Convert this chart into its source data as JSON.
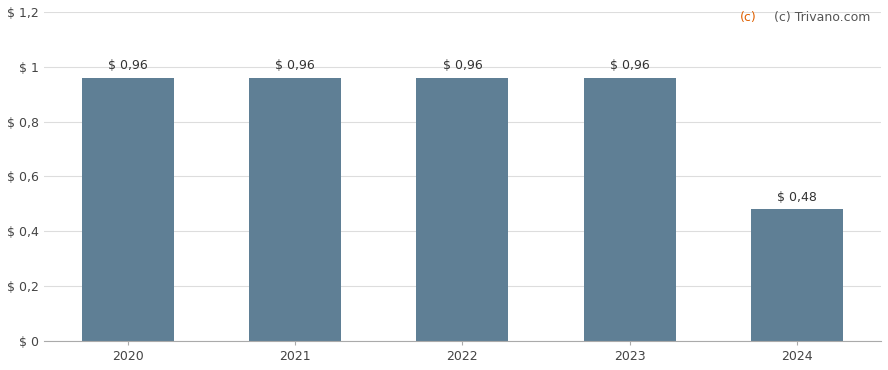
{
  "categories": [
    "2020",
    "2021",
    "2022",
    "2023",
    "2024"
  ],
  "values": [
    0.96,
    0.96,
    0.96,
    0.96,
    0.48
  ],
  "bar_color": "#5f7f95",
  "bar_labels": [
    "$ 0,96",
    "$ 0,96",
    "$ 0,96",
    "$ 0,96",
    "$ 0,48"
  ],
  "ylim": [
    0,
    1.2
  ],
  "yticks": [
    0,
    0.2,
    0.4,
    0.6,
    0.8,
    1.0,
    1.2
  ],
  "ytick_labels": [
    "$ 0",
    "$ 0,2",
    "$ 0,4",
    "$ 0,6",
    "$ 0,8",
    "$ 1",
    "$ 1,2"
  ],
  "background_color": "#ffffff",
  "grid_color": "#dddddd",
  "watermark": "(c) Trivano.com",
  "watermark_color_c": "#e06000",
  "watermark_color_rest": "#555555",
  "bar_label_fontsize": 9,
  "tick_fontsize": 9,
  "watermark_fontsize": 9
}
